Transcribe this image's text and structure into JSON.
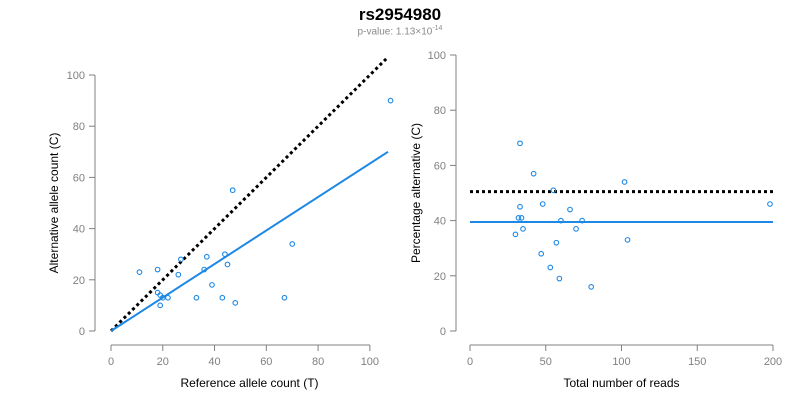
{
  "title": "rs2954980",
  "subtitle": {
    "prefix": "p-value: 1.13×10",
    "exponent": "-14"
  },
  "chart_data": [
    {
      "type": "scatter",
      "xlabel": "Reference allele count (T)",
      "ylabel": "Alternative allele count (C)",
      "xlim": [
        0,
        107
      ],
      "ylim": [
        0,
        100
      ],
      "xticks": [
        0,
        20,
        40,
        60,
        80,
        100
      ],
      "yticks": [
        0,
        20,
        40,
        60,
        80,
        100
      ],
      "grid": false,
      "point_color": "#1e88e5",
      "points": [
        {
          "x": 11,
          "y": 23
        },
        {
          "x": 18,
          "y": 24
        },
        {
          "x": 18,
          "y": 15
        },
        {
          "x": 19,
          "y": 10
        },
        {
          "x": 19,
          "y": 14
        },
        {
          "x": 20,
          "y": 13
        },
        {
          "x": 22,
          "y": 13
        },
        {
          "x": 26,
          "y": 22
        },
        {
          "x": 27,
          "y": 28
        },
        {
          "x": 33,
          "y": 13
        },
        {
          "x": 36,
          "y": 24
        },
        {
          "x": 37,
          "y": 29
        },
        {
          "x": 39,
          "y": 18
        },
        {
          "x": 43,
          "y": 13
        },
        {
          "x": 44,
          "y": 30
        },
        {
          "x": 45,
          "y": 26
        },
        {
          "x": 47,
          "y": 55
        },
        {
          "x": 48,
          "y": 11
        },
        {
          "x": 67,
          "y": 13
        },
        {
          "x": 70,
          "y": 34
        },
        {
          "x": 108,
          "y": 90
        }
      ],
      "lines": [
        {
          "style": "dotted",
          "color": "#000000",
          "from": [
            0,
            0
          ],
          "to": [
            107,
            107
          ]
        },
        {
          "style": "solid",
          "color": "#1e88e5",
          "from": [
            0,
            0
          ],
          "to": [
            107,
            70
          ]
        }
      ]
    },
    {
      "type": "scatter",
      "xlabel": "Total number of reads",
      "ylabel": "Percentage alternative (C)",
      "xlim": [
        0,
        200
      ],
      "ylim": [
        0,
        100
      ],
      "xticks": [
        0,
        50,
        100,
        150,
        200
      ],
      "yticks": [
        0,
        20,
        40,
        60,
        80,
        100
      ],
      "grid": false,
      "point_color": "#1e88e5",
      "points": [
        {
          "x": 30,
          "y": 35
        },
        {
          "x": 32,
          "y": 41
        },
        {
          "x": 33,
          "y": 45
        },
        {
          "x": 33,
          "y": 68
        },
        {
          "x": 34,
          "y": 41
        },
        {
          "x": 35,
          "y": 37
        },
        {
          "x": 42,
          "y": 57
        },
        {
          "x": 47,
          "y": 28
        },
        {
          "x": 48,
          "y": 46
        },
        {
          "x": 53,
          "y": 23
        },
        {
          "x": 55,
          "y": 51
        },
        {
          "x": 57,
          "y": 32
        },
        {
          "x": 59,
          "y": 19
        },
        {
          "x": 60,
          "y": 40
        },
        {
          "x": 66,
          "y": 44
        },
        {
          "x": 70,
          "y": 37
        },
        {
          "x": 74,
          "y": 40
        },
        {
          "x": 80,
          "y": 16
        },
        {
          "x": 102,
          "y": 54
        },
        {
          "x": 104,
          "y": 33
        },
        {
          "x": 198,
          "y": 46
        }
      ],
      "lines": [
        {
          "style": "dotted",
          "color": "#000000",
          "from": [
            0,
            50.5
          ],
          "to": [
            200,
            50.5
          ]
        },
        {
          "style": "solid",
          "color": "#1e88e5",
          "from": [
            0,
            39.5
          ],
          "to": [
            200,
            39.5
          ]
        }
      ]
    }
  ]
}
